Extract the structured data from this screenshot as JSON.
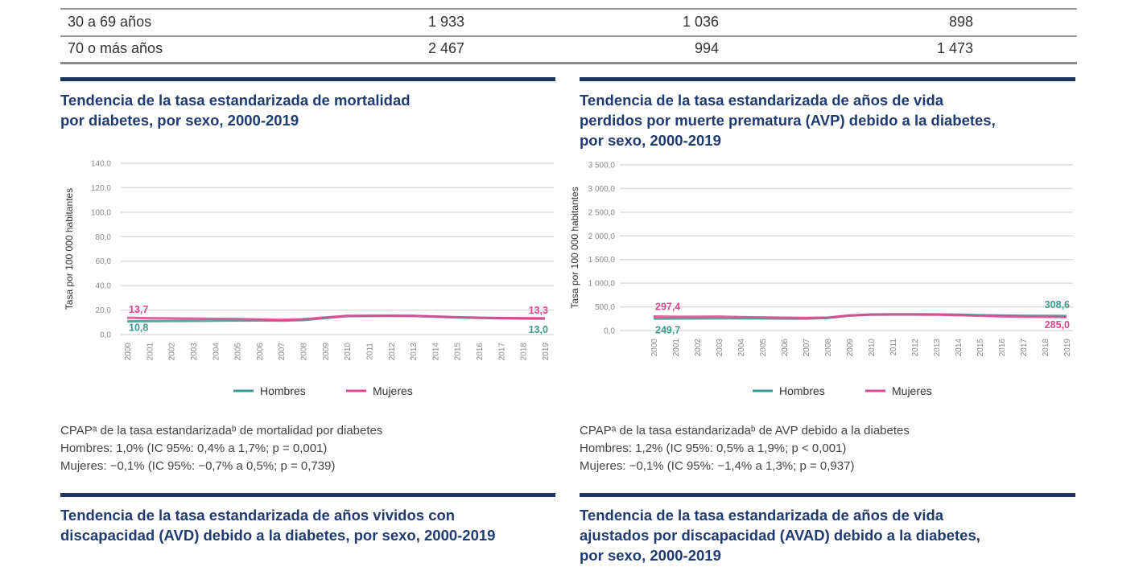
{
  "table": {
    "rows": [
      {
        "label": "30 a 69 años",
        "values": [
          "1 933",
          "1 036",
          "898"
        ]
      },
      {
        "label": "70 o más años",
        "values": [
          "2 467",
          "994",
          "1 473"
        ]
      }
    ]
  },
  "panels": [
    {
      "title_lines": [
        "Tendencia de la tasa estandarizada de mortalidad",
        "por diabetes, por sexo, 2000-2019"
      ],
      "notes": [
        "CPAPᵃ de la tasa estandarizadaᵇ de mortalidad por diabetes",
        "Hombres: 1,0% (IC 95%: 0,4% a 1,7%; p = 0,001)",
        "Mujeres:  −0,1% (IC 95%: −0,7% a 0,5%; p = 0,739)"
      ]
    },
    {
      "title_lines": [
        "Tendencia de la tasa estandarizada de años de vida",
        "perdidos por muerte prematura (AVP) debido a la diabetes,",
        "por sexo, 2000-2019"
      ],
      "notes": [
        "CPAPᵃ de la tasa estandarizadaᵇ de AVP debido a la diabetes",
        "Hombres: 1,2% (IC 95%: 0,5% a 1,9%; p < 0,001)",
        "Mujeres:  −0,1% (IC 95%: −1,4% a 1,3%; p = 0,937)"
      ]
    },
    {
      "title_lines": [
        "Tendencia de la tasa estandarizada de años vividos con",
        "discapacidad (AVD) debido a la diabetes, por sexo, 2000-2019"
      ]
    },
    {
      "title_lines": [
        "Tendencia de la tasa estandarizada de años de vida",
        "ajustados por discapacidad (AVAD) debido a la diabetes,",
        "por sexo, 2000-2019"
      ]
    }
  ],
  "chart_data": [
    {
      "type": "line",
      "ylabel": "Tasa por 100 000 habitantes",
      "ylim": [
        0,
        140
      ],
      "yticks": [
        "0,0",
        "20,0",
        "40,0",
        "60,0",
        "80,0",
        "100,0",
        "120,0",
        "140,0"
      ],
      "grid": true,
      "legend_position": "bottom",
      "x": [
        "2000",
        "2001",
        "2002",
        "2003",
        "2004",
        "2005",
        "2006",
        "2007",
        "2008",
        "2009",
        "2010",
        "2011",
        "2012",
        "2013",
        "2014",
        "2015",
        "2016",
        "2017",
        "2018",
        "2019"
      ],
      "series": [
        {
          "name": "Hombres",
          "color": "#3a9a8c",
          "values": [
            10.8,
            11.0,
            11.1,
            11.2,
            11.3,
            11.4,
            11.5,
            11.3,
            11.8,
            13.5,
            15.0,
            15.2,
            15.3,
            15.2,
            14.6,
            14.0,
            13.6,
            13.3,
            13.1,
            13.0
          ],
          "labels": {
            "first": "10,8",
            "last": "13,0"
          }
        },
        {
          "name": "Mujeres",
          "color": "#e0458f",
          "values": [
            13.7,
            13.4,
            13.2,
            13.1,
            12.9,
            12.7,
            12.4,
            12.0,
            12.5,
            14.0,
            15.3,
            15.4,
            15.4,
            15.3,
            14.8,
            14.2,
            13.8,
            13.5,
            13.4,
            13.3
          ],
          "labels": {
            "first": "13,7",
            "last": "13,3"
          }
        }
      ]
    },
    {
      "type": "line",
      "ylabel": "Tasa por 100 000 habitantes",
      "ylim": [
        0,
        3500
      ],
      "yticks": [
        "0,0",
        "500,0",
        "1 000,0",
        "1 500,0",
        "2 000,0",
        "2 500,0",
        "3 000,0",
        "3 500,0"
      ],
      "grid": true,
      "legend_position": "bottom",
      "x": [
        "2000",
        "2001",
        "2002",
        "2003",
        "2004",
        "2005",
        "2006",
        "2007",
        "2008",
        "2009",
        "2010",
        "2011",
        "2012",
        "2013",
        "2014",
        "2015",
        "2016",
        "2017",
        "2018",
        "2019"
      ],
      "series": [
        {
          "name": "Hombres",
          "color": "#3a9a8c",
          "values": [
            249.7,
            252,
            255,
            258,
            256,
            254,
            252,
            250,
            265,
            315,
            340,
            345,
            345,
            342,
            335,
            325,
            318,
            312,
            310,
            308.6
          ],
          "labels": {
            "first": "249,7",
            "last": "308,6"
          }
        },
        {
          "name": "Mujeres",
          "color": "#e0458f",
          "values": [
            297.4,
            292,
            290,
            295,
            285,
            278,
            272,
            268,
            275,
            318,
            335,
            338,
            337,
            335,
            325,
            312,
            300,
            292,
            288,
            285.0
          ],
          "labels": {
            "first": "297,4",
            "last": "285,0"
          }
        }
      ]
    }
  ]
}
